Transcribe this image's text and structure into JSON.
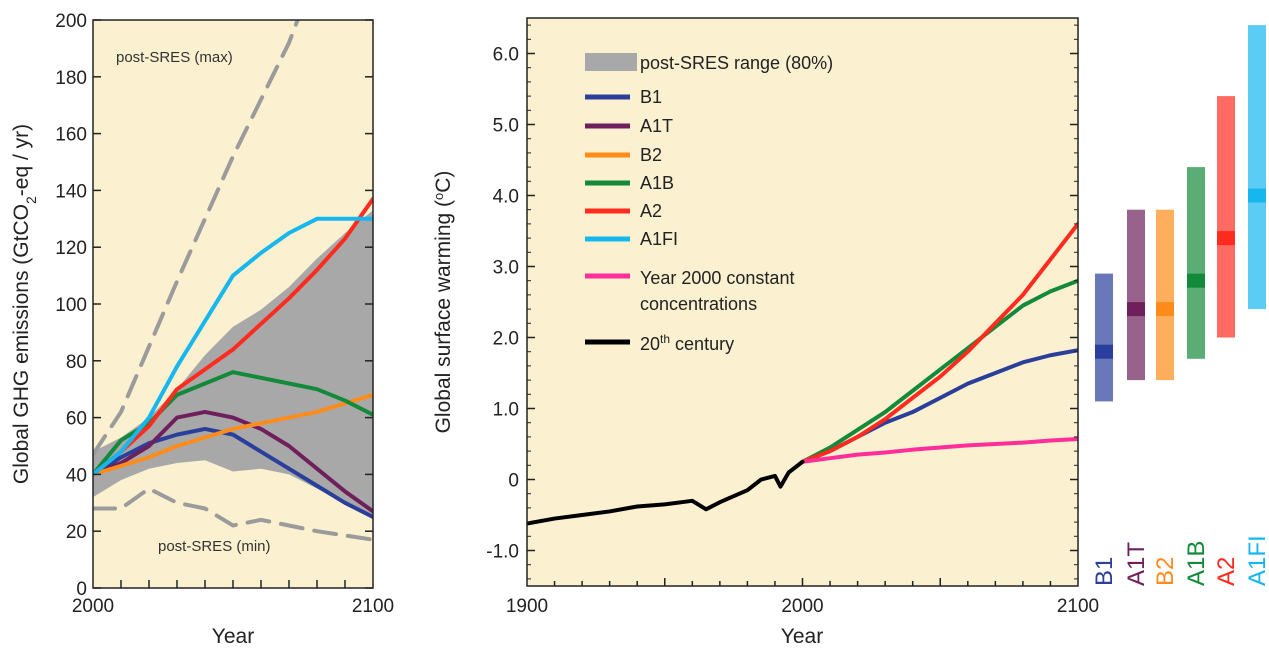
{
  "colors": {
    "panel_bg": "#fbf0cf",
    "B1": "#2a3f9b",
    "A1T": "#6e1f5c",
    "B2": "#ff8c1a",
    "A1B": "#128a3a",
    "A2": "#ff2b1f",
    "A1FI": "#16b7ef",
    "constant": "#ff2e9a",
    "c20": "#000000",
    "range": "#a8a8a8",
    "postsres": "#9b9b9b"
  },
  "chart_data": [
    {
      "type": "line",
      "xlabel": "Year",
      "ylabel_pre": "Global GHG emissions (GtCO",
      "ylabel_sub": "2",
      "ylabel_post": "-eq / yr)",
      "xlim": [
        2000,
        2100
      ],
      "ylim": [
        0,
        200
      ],
      "x_ticks": [
        2000,
        2100
      ],
      "y_ticks": [
        0,
        20,
        40,
        60,
        80,
        100,
        120,
        140,
        160,
        180,
        200
      ],
      "annotations": {
        "max": "post-SRES (max)",
        "min": "post-SRES (min)"
      },
      "range_upper": {
        "x": [
          2000,
          2010,
          2020,
          2030,
          2040,
          2050,
          2060,
          2070,
          2080,
          2090,
          2100
        ],
        "y": [
          48,
          53,
          60,
          70,
          82,
          92,
          98,
          106,
          116,
          125,
          133
        ]
      },
      "range_lower": {
        "x": [
          2000,
          2010,
          2020,
          2030,
          2040,
          2050,
          2060,
          2070,
          2080,
          2090,
          2100
        ],
        "y": [
          32,
          38,
          42,
          44,
          45,
          41,
          42,
          40,
          35,
          30,
          25
        ]
      },
      "postsres_max": {
        "x": [
          2000,
          2010,
          2020,
          2030,
          2040,
          2050,
          2060,
          2070,
          2075
        ],
        "y": [
          47,
          62,
          85,
          108,
          130,
          152,
          172,
          192,
          205
        ]
      },
      "postsres_min": {
        "x": [
          2000,
          2010,
          2020,
          2030,
          2040,
          2050,
          2060,
          2080,
          2100
        ],
        "y": [
          28,
          28,
          35,
          30,
          28,
          22,
          24,
          20,
          17
        ]
      },
      "series": [
        {
          "name": "B1",
          "x": [
            2000,
            2010,
            2020,
            2030,
            2040,
            2050,
            2060,
            2070,
            2080,
            2090,
            2100
          ],
          "y": [
            40,
            46,
            51,
            54,
            56,
            54,
            48,
            42,
            36,
            30,
            25
          ]
        },
        {
          "name": "A1T",
          "x": [
            2000,
            2010,
            2020,
            2030,
            2040,
            2050,
            2060,
            2070,
            2080,
            2090,
            2100
          ],
          "y": [
            40,
            44,
            50,
            60,
            62,
            60,
            56,
            50,
            42,
            34,
            27
          ]
        },
        {
          "name": "B2",
          "x": [
            2000,
            2010,
            2020,
            2030,
            2040,
            2050,
            2060,
            2070,
            2080,
            2090,
            2100
          ],
          "y": [
            40,
            43,
            46,
            50,
            53,
            56,
            58,
            60,
            62,
            65,
            68
          ]
        },
        {
          "name": "A1B",
          "x": [
            2000,
            2010,
            2020,
            2030,
            2040,
            2050,
            2060,
            2070,
            2080,
            2090,
            2100
          ],
          "y": [
            40,
            52,
            58,
            68,
            72,
            76,
            74,
            72,
            70,
            66,
            61
          ]
        },
        {
          "name": "A2",
          "x": [
            2000,
            2010,
            2020,
            2030,
            2040,
            2050,
            2060,
            2070,
            2080,
            2090,
            2100
          ],
          "y": [
            40,
            48,
            57,
            70,
            77,
            84,
            93,
            102,
            112,
            123,
            137
          ]
        },
        {
          "name": "A1FI",
          "x": [
            2000,
            2010,
            2020,
            2030,
            2040,
            2050,
            2060,
            2070,
            2080,
            2090,
            2100
          ],
          "y": [
            40,
            48,
            60,
            78,
            94,
            110,
            118,
            125,
            130,
            130,
            130
          ]
        }
      ]
    },
    {
      "type": "line",
      "xlabel": "Year",
      "ylabel_pre": "Global surface warming (",
      "ylabel_sup": "o",
      "ylabel_post": "C)",
      "xlim": [
        1900,
        2100
      ],
      "ylim": [
        -1.5,
        6.5
      ],
      "x_ticks": [
        1900,
        2000,
        2100
      ],
      "y_ticks": [
        -1.0,
        0,
        1.0,
        2.0,
        3.0,
        4.0,
        5.0,
        6.0
      ],
      "y_tick_labels": [
        "-1.0",
        "0",
        "1.0",
        "2.0",
        "3.0",
        "4.0",
        "5.0",
        "6.0"
      ],
      "legend": {
        "range_label": "post-SRES range (80%)",
        "constant_label_1": "Year 2000 constant",
        "constant_label_2": "concentrations",
        "c20_label_pre": "20",
        "c20_label_sup": "th",
        "c20_label_post": " century"
      },
      "series": [
        {
          "name": "B1",
          "x": [
            2000,
            2010,
            2020,
            2030,
            2040,
            2050,
            2060,
            2070,
            2080,
            2090,
            2100
          ],
          "y": [
            0.25,
            0.4,
            0.6,
            0.8,
            0.95,
            1.15,
            1.35,
            1.5,
            1.65,
            1.75,
            1.82
          ]
        },
        {
          "name": "A1B",
          "x": [
            2000,
            2010,
            2020,
            2030,
            2040,
            2050,
            2060,
            2070,
            2080,
            2090,
            2100
          ],
          "y": [
            0.25,
            0.45,
            0.7,
            0.95,
            1.25,
            1.55,
            1.85,
            2.15,
            2.45,
            2.65,
            2.8
          ]
        },
        {
          "name": "A2",
          "x": [
            2000,
            2010,
            2020,
            2030,
            2040,
            2050,
            2060,
            2070,
            2080,
            2090,
            2100
          ],
          "y": [
            0.25,
            0.4,
            0.6,
            0.85,
            1.15,
            1.45,
            1.8,
            2.2,
            2.6,
            3.1,
            3.6
          ]
        },
        {
          "name": "Year 2000 constant concentrations",
          "x": [
            2000,
            2010,
            2020,
            2030,
            2040,
            2050,
            2060,
            2070,
            2080,
            2090,
            2100
          ],
          "y": [
            0.25,
            0.3,
            0.35,
            0.38,
            0.42,
            0.45,
            0.48,
            0.5,
            0.52,
            0.55,
            0.57
          ]
        },
        {
          "name": "20th century",
          "x": [
            1900,
            1910,
            1920,
            1930,
            1940,
            1950,
            1960,
            1965,
            1970,
            1980,
            1985,
            1990,
            1992,
            1995,
            2000
          ],
          "y": [
            -0.62,
            -0.55,
            -0.5,
            -0.45,
            -0.38,
            -0.35,
            -0.3,
            -0.42,
            -0.32,
            -0.15,
            0.0,
            0.05,
            -0.1,
            0.1,
            0.25
          ]
        }
      ]
    },
    {
      "type": "range_bars",
      "ylim": [
        -1.5,
        6.5
      ],
      "bars": [
        {
          "name": "B1",
          "low": 1.1,
          "best": 1.8,
          "high": 2.9
        },
        {
          "name": "A1T",
          "low": 1.4,
          "best": 2.4,
          "high": 3.8
        },
        {
          "name": "B2",
          "low": 1.4,
          "best": 2.4,
          "high": 3.8
        },
        {
          "name": "A1B",
          "low": 1.7,
          "best": 2.8,
          "high": 4.4
        },
        {
          "name": "A2",
          "low": 2.0,
          "best": 3.4,
          "high": 5.4
        },
        {
          "name": "A1FI",
          "low": 2.4,
          "best": 4.0,
          "high": 6.4
        }
      ]
    }
  ]
}
